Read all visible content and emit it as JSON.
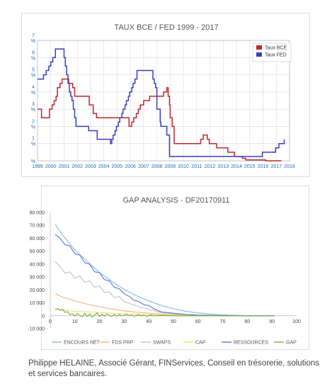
{
  "caption": "Philippe HELAINE, Associé Gérant, FINServices, Conseil en trésorerie, solutions et services bancaires.",
  "chart_data": [
    {
      "type": "line",
      "title": "TAUX BCE / FED 1999 - 2017",
      "xlabel": "",
      "ylabel": "",
      "xlim": [
        1999,
        2018
      ],
      "ylim": [
        0,
        7
      ],
      "x_ticks": [
        "1999",
        "2000",
        "2001",
        "2002",
        "2003",
        "2004",
        "2005",
        "2006",
        "2007",
        "2008",
        "2009",
        "2010",
        "2011",
        "2012",
        "2013",
        "2014",
        "2015",
        "2016",
        "2017",
        "2018"
      ],
      "y_ticks": [
        {
          "value": 0,
          "label": "%"
        },
        {
          "value": 1,
          "label": "1\n%"
        },
        {
          "value": 2,
          "label": "2\n%"
        },
        {
          "value": 3,
          "label": "3\n%"
        },
        {
          "value": 4,
          "label": "4\n%"
        },
        {
          "value": 5,
          "label": "5\n%"
        },
        {
          "value": 6,
          "label": "6\n%"
        },
        {
          "value": 7,
          "label": "7\n%"
        }
      ],
      "grid": true,
      "legend": "top-right",
      "series": [
        {
          "name": "Taux BCE",
          "color": "#c0272d",
          "step": true,
          "x": [
            1999.0,
            1999.3,
            1999.9,
            2000.1,
            2000.25,
            2000.4,
            2000.5,
            2000.7,
            2000.85,
            2001.35,
            2001.65,
            2001.8,
            2002.9,
            2003.2,
            2003.45,
            2005.9,
            2006.1,
            2006.25,
            2006.45,
            2006.6,
            2006.75,
            2007.0,
            2007.45,
            2008.5,
            2008.75,
            2008.85,
            2008.95,
            2009.0,
            2009.15,
            2009.3,
            2011.3,
            2011.5,
            2011.8,
            2011.95,
            2012.5,
            2013.35,
            2013.85,
            2014.45,
            2014.7,
            2016.2,
            2017.4
          ],
          "values": [
            3.0,
            2.5,
            3.0,
            3.25,
            3.5,
            3.75,
            4.25,
            4.5,
            4.75,
            4.5,
            4.25,
            3.75,
            3.25,
            2.75,
            2.5,
            2.0,
            2.25,
            2.5,
            2.75,
            3.0,
            3.25,
            3.5,
            3.75,
            4.0,
            4.25,
            3.75,
            3.25,
            2.5,
            2.0,
            1.0,
            1.25,
            1.5,
            1.25,
            1.0,
            0.75,
            0.5,
            0.25,
            0.15,
            0.05,
            0.0,
            0.0
          ]
        },
        {
          "name": "Taux FED",
          "color": "#3a3ec0",
          "step": true,
          "x": [
            1999.0,
            1999.45,
            1999.65,
            1999.85,
            2000.0,
            2000.15,
            2000.35,
            2001.0,
            2001.1,
            2001.2,
            2001.3,
            2001.4,
            2001.5,
            2001.6,
            2001.7,
            2001.8,
            2001.9,
            2002.85,
            2003.5,
            2004.5,
            2004.6,
            2004.7,
            2004.85,
            2004.95,
            2005.1,
            2005.2,
            2005.35,
            2005.45,
            2005.6,
            2005.7,
            2005.85,
            2005.95,
            2006.1,
            2006.2,
            2006.35,
            2006.5,
            2007.7,
            2007.8,
            2007.9,
            2008.0,
            2008.05,
            2008.25,
            2008.3,
            2008.75,
            2008.95,
            2015.95,
            2016.95,
            2017.2,
            2017.45,
            2017.6
          ],
          "values": [
            4.75,
            5.0,
            5.25,
            5.5,
            5.75,
            6.0,
            6.5,
            6.0,
            5.5,
            5.0,
            4.5,
            4.0,
            3.75,
            3.5,
            3.0,
            2.5,
            2.0,
            1.75,
            1.25,
            1.0,
            1.25,
            1.5,
            1.75,
            2.0,
            2.25,
            2.5,
            2.75,
            3.0,
            3.25,
            3.5,
            3.75,
            4.0,
            4.25,
            4.5,
            4.75,
            5.25,
            4.75,
            4.5,
            4.25,
            3.0,
            3.0,
            2.25,
            2.0,
            1.5,
            0.25,
            0.5,
            0.75,
            1.0,
            1.0,
            1.25
          ]
        }
      ]
    },
    {
      "type": "line",
      "title": "GAP ANALYSIS - DF20170911",
      "xlabel": "",
      "ylabel": "",
      "xlim": [
        0,
        100
      ],
      "ylim": [
        -10000,
        80000
      ],
      "x_ticks": [
        "0",
        "10",
        "20",
        "30",
        "40",
        "50",
        "60",
        "70",
        "80",
        "90",
        "100"
      ],
      "y_ticks": [
        {
          "value": -10000,
          "label": "-10 000"
        },
        {
          "value": 0,
          "label": "0"
        },
        {
          "value": 10000,
          "label": "10 000"
        },
        {
          "value": 20000,
          "label": "20 000"
        },
        {
          "value": 30000,
          "label": "30 000"
        },
        {
          "value": 40000,
          "label": "40 000"
        },
        {
          "value": 50000,
          "label": "50 000"
        },
        {
          "value": 60000,
          "label": "60 000"
        },
        {
          "value": 70000,
          "label": "70 000"
        },
        {
          "value": 80000,
          "label": "80 000"
        }
      ],
      "grid": false,
      "legend": "bottom",
      "series": [
        {
          "name": "ENCOURS NET",
          "color": "#8ab4e4",
          "x": [
            2,
            5,
            10,
            15,
            20,
            25,
            30,
            35,
            40,
            45,
            50,
            55,
            60,
            65,
            70,
            75,
            80,
            85,
            91
          ],
          "values": [
            71000,
            62500,
            51000,
            42000,
            33500,
            26500,
            20500,
            15500,
            11500,
            8000,
            5500,
            3500,
            2200,
            1300,
            700,
            350,
            150,
            50,
            0
          ]
        },
        {
          "name": "FDS PRP",
          "color": "#f4b183",
          "x": [
            2,
            5,
            10,
            15,
            20,
            25,
            30,
            35,
            40,
            45,
            50,
            55,
            60,
            65,
            70,
            75,
            80,
            85,
            91
          ],
          "values": [
            17000,
            14500,
            11500,
            9000,
            7000,
            5200,
            3800,
            2800,
            2000,
            1300,
            800,
            500,
            300,
            150,
            80,
            40,
            20,
            10,
            0
          ]
        },
        {
          "name": "SWAPS",
          "color": "#c0c0c0",
          "x": [
            2,
            4,
            6,
            8,
            10,
            12,
            14,
            16,
            18,
            20,
            22,
            24,
            26,
            28,
            30,
            33,
            36,
            39,
            42,
            45,
            50,
            55,
            60,
            70,
            80,
            91
          ],
          "values": [
            42000,
            38000,
            33000,
            34000,
            29000,
            31000,
            26000,
            27000,
            22000,
            23000,
            18000,
            18500,
            14000,
            15000,
            11000,
            9000,
            7000,
            5500,
            4000,
            2500,
            1500,
            800,
            400,
            100,
            0,
            0
          ]
        },
        {
          "name": "CAP",
          "color": "#ffd966",
          "x": [
            2,
            5,
            10,
            15,
            20,
            25,
            30,
            35,
            40,
            45,
            50,
            60,
            70,
            80,
            91
          ],
          "values": [
            5000,
            4500,
            3500,
            3000,
            2500,
            2000,
            1500,
            1200,
            1000,
            700,
            500,
            300,
            150,
            50,
            0
          ]
        },
        {
          "name": "RESSOURCES",
          "color": "#4a7ccf",
          "x": [
            2,
            4,
            6,
            8,
            10,
            12,
            14,
            16,
            18,
            20,
            22,
            24,
            26,
            28,
            30,
            32,
            34,
            36,
            38,
            40,
            42,
            45,
            50,
            55,
            60,
            70,
            80,
            91
          ],
          "values": [
            63000,
            60000,
            55000,
            54000,
            48000,
            47000,
            41000,
            40000,
            34000,
            33500,
            28000,
            27000,
            22000,
            21000,
            17000,
            15000,
            12000,
            11000,
            8500,
            8000,
            5500,
            3000,
            2000,
            1000,
            500,
            100,
            0,
            0
          ]
        },
        {
          "name": "GAP",
          "color": "#70ad47",
          "x": [
            2,
            3,
            4,
            5,
            6,
            7,
            8,
            9,
            10,
            11,
            12,
            13,
            14,
            15,
            16,
            17,
            18,
            19,
            20,
            21,
            22,
            23,
            24,
            25,
            26,
            27,
            28,
            29,
            30,
            31,
            32,
            33,
            34,
            35,
            36,
            37,
            38,
            39,
            40,
            41,
            42,
            45,
            50,
            60,
            70,
            80,
            91
          ],
          "values": [
            4800,
            5600,
            4200,
            5000,
            2500,
            3200,
            800,
            1500,
            -300,
            1800,
            300,
            -900,
            2000,
            -700,
            1500,
            -1200,
            600,
            2200,
            -500,
            1200,
            -200,
            1400,
            200,
            -600,
            1000,
            -300,
            900,
            -100,
            500,
            1100,
            0,
            600,
            -400,
            300,
            800,
            -200,
            400,
            -500,
            200,
            600,
            0,
            200,
            0,
            0,
            0,
            0,
            0
          ]
        }
      ]
    }
  ]
}
